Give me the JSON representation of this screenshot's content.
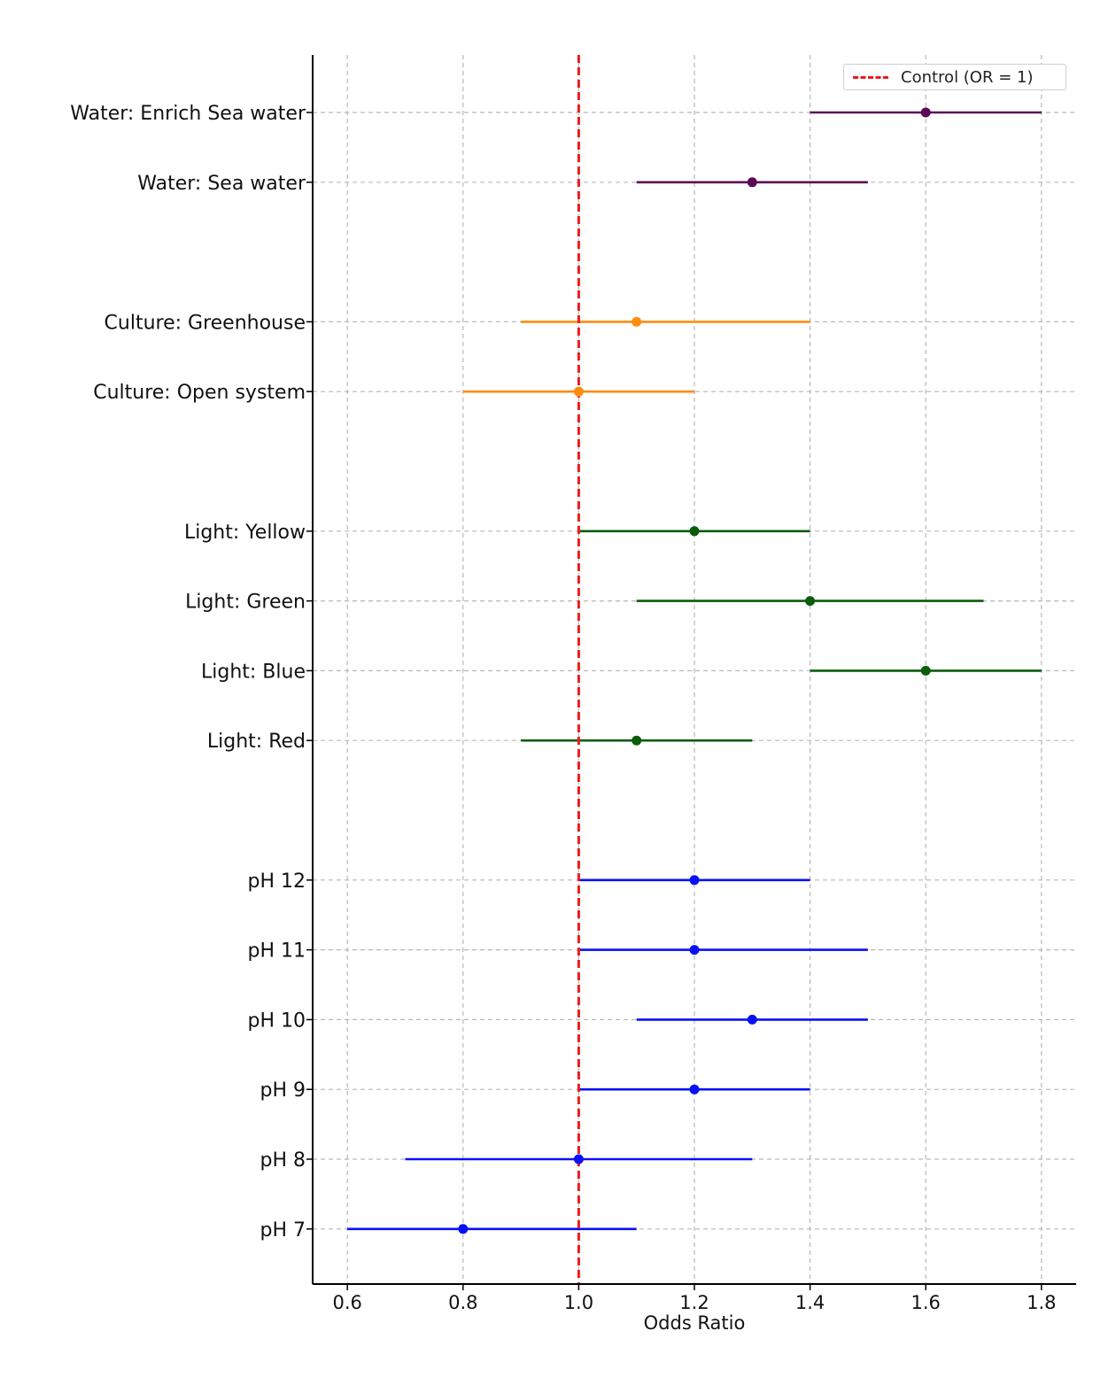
{
  "chart_data": {
    "type": "forest",
    "xlabel": "Odds Ratio",
    "xlim": [
      0.54,
      1.86
    ],
    "xticks": [
      0.6,
      0.8,
      1.0,
      1.2,
      1.4,
      1.6,
      1.8
    ],
    "xtick_labels": [
      "0.6",
      "0.8",
      "1.0",
      "1.2",
      "1.4",
      "1.6",
      "1.8"
    ],
    "grid": true,
    "reference_line": {
      "value": 1.0,
      "label": "Control (OR = 1)",
      "color": "#ee1c1c",
      "style": "dashed"
    },
    "legend": {
      "position": "top-right",
      "entries": [
        "Control (OR = 1)"
      ]
    },
    "groups": [
      {
        "name": "Water",
        "color": "#5b0a56"
      },
      {
        "name": "Culture",
        "color": "#ff8c0f"
      },
      {
        "name": "Light",
        "color": "#0b5c0b"
      },
      {
        "name": "pH",
        "color": "#0a10f5"
      }
    ],
    "rows": [
      {
        "label": "Water: Enrich Sea water",
        "group": "Water",
        "or": 1.6,
        "ci_low": 1.4,
        "ci_high": 1.8
      },
      {
        "label": "Water: Sea water",
        "group": "Water",
        "or": 1.3,
        "ci_low": 1.1,
        "ci_high": 1.5
      },
      {
        "label": "Culture: Greenhouse",
        "group": "Culture",
        "or": 1.1,
        "ci_low": 0.9,
        "ci_high": 1.4
      },
      {
        "label": "Culture: Open system",
        "group": "Culture",
        "or": 1.0,
        "ci_low": 0.8,
        "ci_high": 1.2
      },
      {
        "label": "Light: Yellow",
        "group": "Light",
        "or": 1.2,
        "ci_low": 1.0,
        "ci_high": 1.4
      },
      {
        "label": "Light: Green",
        "group": "Light",
        "or": 1.4,
        "ci_low": 1.1,
        "ci_high": 1.7
      },
      {
        "label": "Light: Blue",
        "group": "Light",
        "or": 1.6,
        "ci_low": 1.4,
        "ci_high": 1.8
      },
      {
        "label": "Light: Red",
        "group": "Light",
        "or": 1.1,
        "ci_low": 0.9,
        "ci_high": 1.3
      },
      {
        "label": "pH 12",
        "group": "pH",
        "or": 1.2,
        "ci_low": 1.0,
        "ci_high": 1.4
      },
      {
        "label": "pH 11",
        "group": "pH",
        "or": 1.2,
        "ci_low": 1.0,
        "ci_high": 1.5
      },
      {
        "label": "pH 10",
        "group": "pH",
        "or": 1.3,
        "ci_low": 1.1,
        "ci_high": 1.5
      },
      {
        "label": "pH 9",
        "group": "pH",
        "or": 1.2,
        "ci_low": 1.0,
        "ci_high": 1.4
      },
      {
        "label": "pH 8",
        "group": "pH",
        "or": 1.0,
        "ci_low": 0.7,
        "ci_high": 1.3
      },
      {
        "label": "pH 7",
        "group": "pH",
        "or": 0.8,
        "ci_low": 0.6,
        "ci_high": 1.1
      }
    ]
  }
}
